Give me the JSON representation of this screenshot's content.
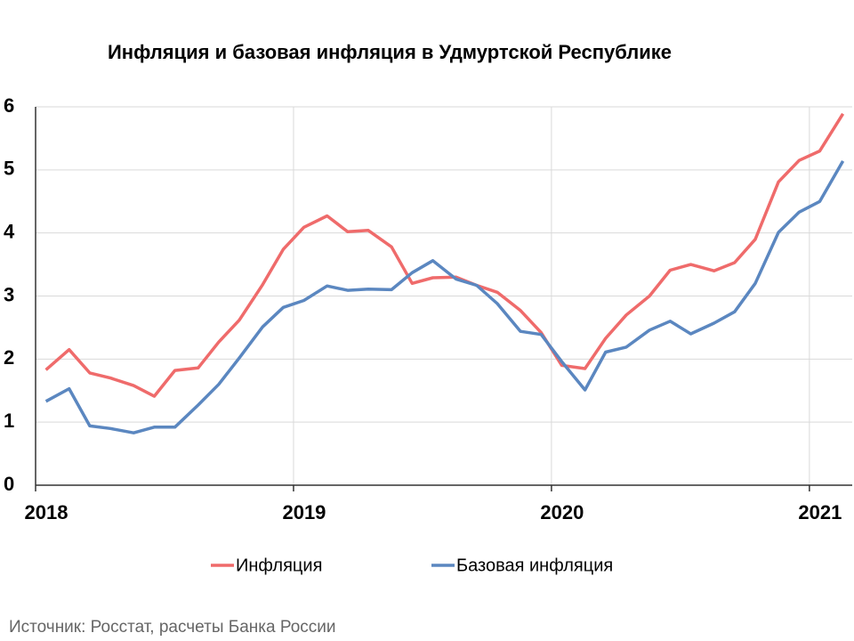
{
  "chart_data": {
    "type": "line",
    "title": "Инфляция и базовая инфляция в Удмуртской Республике",
    "source": "Источник: Росстат, расчеты Банка России",
    "x": [
      2018.04,
      2018.13,
      2018.21,
      2018.29,
      2018.38,
      2018.46,
      2018.54,
      2018.63,
      2018.71,
      2018.79,
      2018.88,
      2018.96,
      2019.04,
      2019.13,
      2019.21,
      2019.29,
      2019.38,
      2019.46,
      2019.54,
      2019.63,
      2019.71,
      2019.79,
      2019.88,
      2019.96,
      2020.04,
      2020.13,
      2020.21,
      2020.29,
      2020.38,
      2020.46,
      2020.54,
      2020.63,
      2020.71,
      2020.79,
      2020.88,
      2020.96,
      2021.04,
      2021.13
    ],
    "series": [
      {
        "name": "Инфляция",
        "color": "#ef6b6b",
        "values": [
          1.83,
          2.15,
          1.78,
          1.7,
          1.58,
          1.41,
          1.82,
          1.86,
          2.27,
          2.62,
          3.18,
          3.74,
          4.09,
          4.27,
          4.02,
          4.04,
          3.78,
          3.2,
          3.29,
          3.3,
          3.17,
          3.06,
          2.77,
          2.42,
          1.9,
          1.85,
          2.33,
          2.7,
          3.0,
          3.41,
          3.5,
          3.4,
          3.53,
          3.9,
          4.81,
          5.15,
          5.3,
          5.89
        ]
      },
      {
        "name": "Базовая инфляция",
        "color": "#5b87c0",
        "values": [
          1.33,
          1.53,
          0.94,
          0.9,
          0.83,
          0.92,
          0.92,
          1.27,
          1.6,
          2.02,
          2.51,
          2.82,
          2.93,
          3.16,
          3.09,
          3.11,
          3.1,
          3.37,
          3.56,
          3.27,
          3.17,
          2.88,
          2.44,
          2.39,
          1.96,
          1.51,
          2.11,
          2.19,
          2.46,
          2.6,
          2.4,
          2.57,
          2.75,
          3.2,
          4.01,
          4.33,
          4.5,
          5.14
        ]
      }
    ],
    "xlim": [
      2018,
      2021.166
    ],
    "xticks": [
      2018,
      2019,
      2020,
      2021
    ],
    "ylim": [
      0,
      6
    ],
    "yticks": [
      0,
      1,
      2,
      3,
      4,
      5,
      6
    ],
    "grid": true
  }
}
